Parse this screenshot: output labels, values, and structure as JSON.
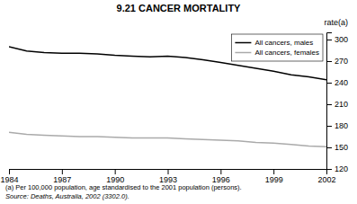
{
  "chart_data": {
    "type": "line",
    "title": "9.21  CANCER MORTALITY",
    "ylabel": "rate(a)",
    "x": [
      1984,
      1985,
      1986,
      1987,
      1988,
      1989,
      1990,
      1991,
      1992,
      1993,
      1994,
      1995,
      1996,
      1997,
      1998,
      1999,
      2000,
      2001,
      2002
    ],
    "series": [
      {
        "name": "All cancers, males",
        "color": "#000000",
        "values": [
          290,
          284,
          282,
          281,
          281,
          280,
          278,
          277,
          276,
          277,
          275,
          272,
          268,
          264,
          260,
          256,
          251,
          248,
          244
        ]
      },
      {
        "name": "All cancers, females",
        "color": "#aaaaaa",
        "values": [
          171,
          168,
          167,
          166,
          165,
          165,
          164,
          163,
          163,
          163,
          162,
          161,
          160,
          159,
          157,
          156,
          154,
          152,
          151
        ]
      }
    ],
    "xlim": [
      1984,
      2002
    ],
    "xticks": [
      1984,
      1987,
      1990,
      1993,
      1996,
      1999,
      2002
    ],
    "ylim": [
      120,
      310
    ],
    "yticks": [
      120,
      150,
      180,
      210,
      240,
      270,
      300
    ],
    "legend": "upper right",
    "annotations": [
      "(a) Per 100,000 population, age standardised to the 2001 population (persons).",
      "Source: Deaths, Australia, 2002 (3302.0)."
    ]
  }
}
